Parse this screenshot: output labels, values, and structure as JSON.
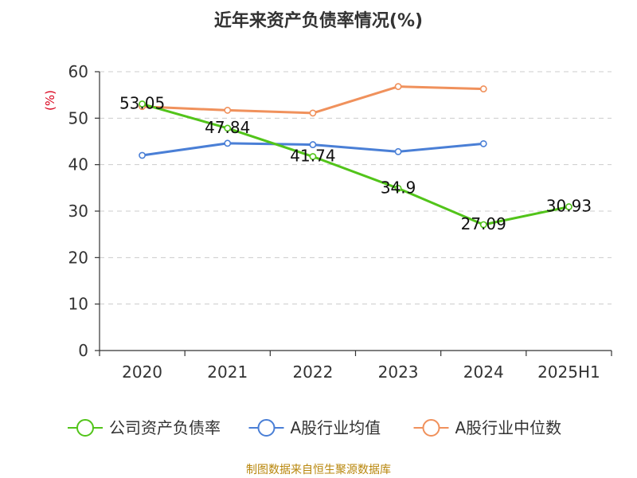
{
  "chart_data": {
    "type": "line",
    "title": "近年来资产负债率情况(%)",
    "ylabel": "(%)",
    "xlabel": "",
    "categories": [
      "2020",
      "2021",
      "2022",
      "2023",
      "2024",
      "2025H1"
    ],
    "ylim": [
      0,
      60
    ],
    "yticks": [
      "0",
      "10",
      "20",
      "30",
      "40",
      "50",
      "60"
    ],
    "grid": true,
    "legend_position": "bottom",
    "series": [
      {
        "name": "公司资产负债率",
        "color": "#52c41a",
        "values": [
          53.05,
          47.84,
          41.74,
          34.9,
          27.09,
          30.93
        ],
        "labels": [
          "53.05",
          "47.84",
          "41.74",
          "34.9",
          "27.09",
          "30.93"
        ]
      },
      {
        "name": "A股行业均值",
        "color": "#4a7fd6",
        "values": [
          42.0,
          44.6,
          44.3,
          42.8,
          44.5,
          null
        ],
        "labels": []
      },
      {
        "name": "A股行业中位数",
        "color": "#f0915c",
        "values": [
          52.5,
          51.7,
          51.1,
          56.8,
          56.3,
          null
        ],
        "labels": []
      }
    ]
  },
  "source": "制图数据来自恒生聚源数据库"
}
